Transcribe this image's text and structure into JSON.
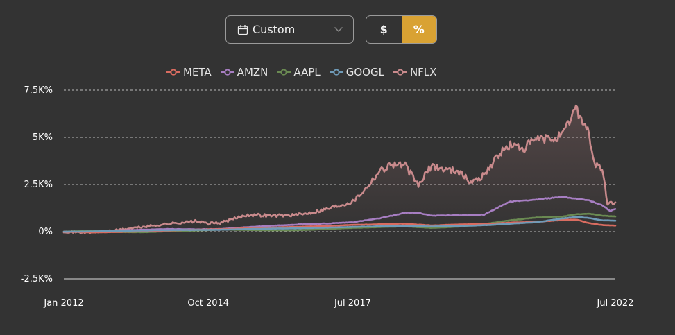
{
  "controls": {
    "date_range": {
      "label": "Custom",
      "icon": "calendar-icon",
      "dropdown_icon": "chevron-down-icon"
    },
    "mode_toggle": {
      "options": [
        "$",
        "%"
      ],
      "selected": "%",
      "accent": "#d9a233"
    }
  },
  "chart_data": {
    "type": "line",
    "title": "",
    "xlabel": "",
    "ylabel": "",
    "ylim": [
      -2500,
      7500
    ],
    "xlim": [
      "Jan 2012",
      "Jul 2022"
    ],
    "yticks": [
      7500,
      5000,
      2500,
      0,
      -2500
    ],
    "ytick_labels": [
      "7.5K%",
      "5K%",
      "2.5K%",
      "0%",
      "-2.5K%"
    ],
    "xtick_labels": [
      "Jan 2012",
      "Oct 2014",
      "Jul 2017",
      "Jul 2022"
    ],
    "xtick_years": [
      2012.0,
      2014.75,
      2017.5,
      2022.5
    ],
    "grid": "horizontal dashed",
    "legend": "top",
    "area_fill": true,
    "series": [
      {
        "name": "META",
        "color": "#d96c60",
        "points": [
          [
            2012.0,
            0
          ],
          [
            2012.5,
            -40
          ],
          [
            2013.0,
            -20
          ],
          [
            2013.5,
            20
          ],
          [
            2014.0,
            60
          ],
          [
            2014.5,
            100
          ],
          [
            2015.0,
            130
          ],
          [
            2015.5,
            180
          ],
          [
            2016.0,
            220
          ],
          [
            2016.5,
            260
          ],
          [
            2017.0,
            300
          ],
          [
            2017.5,
            360
          ],
          [
            2018.0,
            390
          ],
          [
            2018.5,
            420
          ],
          [
            2019.0,
            330
          ],
          [
            2019.5,
            380
          ],
          [
            2020.0,
            410
          ],
          [
            2020.5,
            480
          ],
          [
            2021.0,
            520
          ],
          [
            2021.5,
            620
          ],
          [
            2021.75,
            640
          ],
          [
            2022.0,
            450
          ],
          [
            2022.25,
            350
          ],
          [
            2022.5,
            320
          ]
        ]
      },
      {
        "name": "AMZN",
        "color": "#a77ec2",
        "points": [
          [
            2012.0,
            0
          ],
          [
            2012.5,
            20
          ],
          [
            2013.0,
            60
          ],
          [
            2013.5,
            100
          ],
          [
            2014.0,
            140
          ],
          [
            2014.5,
            120
          ],
          [
            2015.0,
            140
          ],
          [
            2015.5,
            240
          ],
          [
            2016.0,
            320
          ],
          [
            2016.5,
            390
          ],
          [
            2017.0,
            430
          ],
          [
            2017.5,
            500
          ],
          [
            2018.0,
            700
          ],
          [
            2018.5,
            1000
          ],
          [
            2018.75,
            1000
          ],
          [
            2019.0,
            850
          ],
          [
            2019.5,
            870
          ],
          [
            2020.0,
            900
          ],
          [
            2020.5,
            1600
          ],
          [
            2021.0,
            1700
          ],
          [
            2021.5,
            1850
          ],
          [
            2021.75,
            1750
          ],
          [
            2022.0,
            1650
          ],
          [
            2022.25,
            1400
          ],
          [
            2022.4,
            1100
          ],
          [
            2022.5,
            1200
          ]
        ]
      },
      {
        "name": "AAPL",
        "color": "#6a8a52",
        "points": [
          [
            2012.0,
            0
          ],
          [
            2012.5,
            40
          ],
          [
            2013.0,
            -20
          ],
          [
            2013.5,
            -30
          ],
          [
            2014.0,
            20
          ],
          [
            2014.5,
            60
          ],
          [
            2015.0,
            110
          ],
          [
            2015.5,
            90
          ],
          [
            2016.0,
            70
          ],
          [
            2016.5,
            80
          ],
          [
            2017.0,
            140
          ],
          [
            2017.5,
            200
          ],
          [
            2018.0,
            240
          ],
          [
            2018.5,
            280
          ],
          [
            2019.0,
            200
          ],
          [
            2019.5,
            260
          ],
          [
            2020.0,
            400
          ],
          [
            2020.5,
            600
          ],
          [
            2021.0,
            750
          ],
          [
            2021.5,
            800
          ],
          [
            2021.75,
            920
          ],
          [
            2022.0,
            950
          ],
          [
            2022.25,
            850
          ],
          [
            2022.5,
            800
          ]
        ]
      },
      {
        "name": "GOOGL",
        "color": "#6f9bb8",
        "points": [
          [
            2012.0,
            0
          ],
          [
            2012.5,
            10
          ],
          [
            2013.0,
            40
          ],
          [
            2013.5,
            60
          ],
          [
            2014.0,
            80
          ],
          [
            2014.5,
            90
          ],
          [
            2015.0,
            100
          ],
          [
            2015.5,
            140
          ],
          [
            2016.0,
            160
          ],
          [
            2016.5,
            180
          ],
          [
            2017.0,
            210
          ],
          [
            2017.5,
            250
          ],
          [
            2018.0,
            280
          ],
          [
            2018.5,
            300
          ],
          [
            2019.0,
            270
          ],
          [
            2019.5,
            300
          ],
          [
            2020.0,
            340
          ],
          [
            2020.5,
            420
          ],
          [
            2021.0,
            500
          ],
          [
            2021.5,
            700
          ],
          [
            2021.75,
            780
          ],
          [
            2022.0,
            720
          ],
          [
            2022.25,
            600
          ],
          [
            2022.5,
            580
          ]
        ]
      },
      {
        "name": "NFLX",
        "color": "#c98a8c",
        "points": [
          [
            2012.0,
            0
          ],
          [
            2012.5,
            -50
          ],
          [
            2013.0,
            80
          ],
          [
            2013.5,
            250
          ],
          [
            2014.0,
            420
          ],
          [
            2014.5,
            550
          ],
          [
            2014.75,
            430
          ],
          [
            2015.0,
            480
          ],
          [
            2015.5,
            900
          ],
          [
            2016.0,
            850
          ],
          [
            2016.5,
            900
          ],
          [
            2017.0,
            1200
          ],
          [
            2017.5,
            1600
          ],
          [
            2017.75,
            2300
          ],
          [
            2018.0,
            3200
          ],
          [
            2018.25,
            3600
          ],
          [
            2018.5,
            3500
          ],
          [
            2018.75,
            2450
          ],
          [
            2019.0,
            3500
          ],
          [
            2019.25,
            3300
          ],
          [
            2019.5,
            3250
          ],
          [
            2019.75,
            2600
          ],
          [
            2020.0,
            3000
          ],
          [
            2020.25,
            4000
          ],
          [
            2020.5,
            4600
          ],
          [
            2020.75,
            4400
          ],
          [
            2021.0,
            4900
          ],
          [
            2021.25,
            4900
          ],
          [
            2021.5,
            5100
          ],
          [
            2021.75,
            6600
          ],
          [
            2022.0,
            5200
          ],
          [
            2022.1,
            3600
          ],
          [
            2022.25,
            3300
          ],
          [
            2022.35,
            1500
          ],
          [
            2022.5,
            1550
          ]
        ]
      }
    ]
  }
}
